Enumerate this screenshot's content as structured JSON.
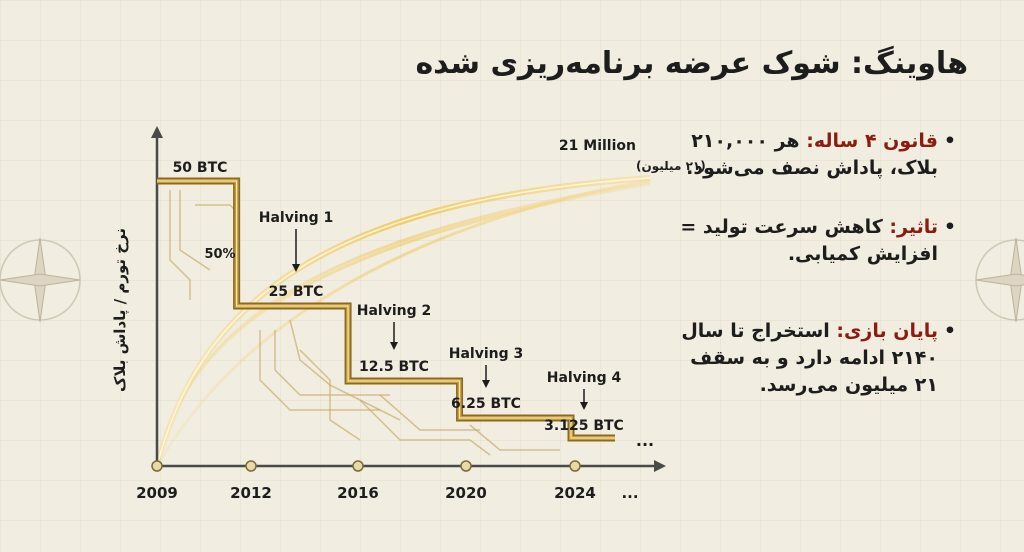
{
  "title": "هاوینگ: شوک عرضه برنامه‌ریزی شده",
  "bullets": [
    {
      "head": "قانون ۴ ساله:",
      "body": " هر ۲۱۰,۰۰۰ بلاک، پاداش نصف می‌شود."
    },
    {
      "head": "تاثیر:",
      "body": " کاهش سرعت تولید = افزایش کمیابی."
    },
    {
      "head": "پایان بازی:",
      "body": " استخراج تا سال ۲۱۴۰ ادامه دارد و به سقف ۲۱ میلیون می‌رسد."
    }
  ],
  "colors": {
    "accent": "#8b1d10",
    "step": "#c49a3a",
    "axis": "#4a4a4a"
  },
  "chart_data": {
    "type": "line",
    "ylabel": "نرخ تورم / پاداش بلاک",
    "x_ticks": [
      "2009",
      "2012",
      "2016",
      "2020",
      "2024",
      "..."
    ],
    "series": [
      {
        "values": [
          {
            "x": 2009,
            "y": 50
          },
          {
            "x": 2012,
            "y": 25
          },
          {
            "x": 2016,
            "y": 12.5
          },
          {
            "x": 2020,
            "y": 6.25
          },
          {
            "x": 2024,
            "y": 3.125
          }
        ]
      }
    ],
    "labels": [
      "50 BTC",
      "25 BTC",
      "12.5 BTC",
      "6.25 BTC",
      "3.125 BTC"
    ],
    "halvings": [
      "Halving 1",
      "Halving 2",
      "Halving 3",
      "Halving 4"
    ],
    "supply_label": "21 Million",
    "supply_sublabel": "(۲۱ میلیون)",
    "percent_label": "50%",
    "trailing": "..."
  }
}
